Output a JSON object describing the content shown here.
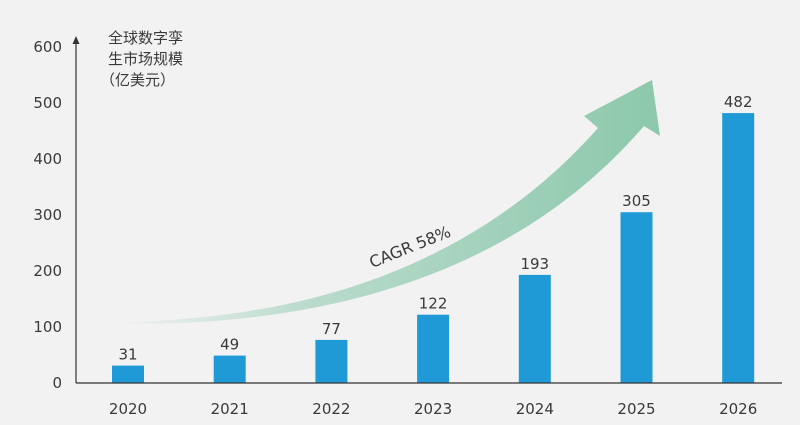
{
  "chart_data": {
    "type": "bar",
    "title": "",
    "ylabel_lines": [
      "全球数字孪",
      "生市场规模",
      "（亿美元）"
    ],
    "xlabel": "",
    "categories": [
      "2020",
      "2021",
      "2022",
      "2023",
      "2024",
      "2025",
      "2026"
    ],
    "values": [
      31,
      49,
      77,
      122,
      193,
      305,
      482
    ],
    "ylim": [
      0,
      600
    ],
    "yticks": [
      0,
      100,
      200,
      300,
      400,
      500,
      600
    ],
    "grid": false,
    "legend": "none",
    "annotation": "CAGR 58%",
    "colors": {
      "bar": "#1f9ad6",
      "arrow": "#8cc8ac",
      "axis": "#333333"
    }
  }
}
